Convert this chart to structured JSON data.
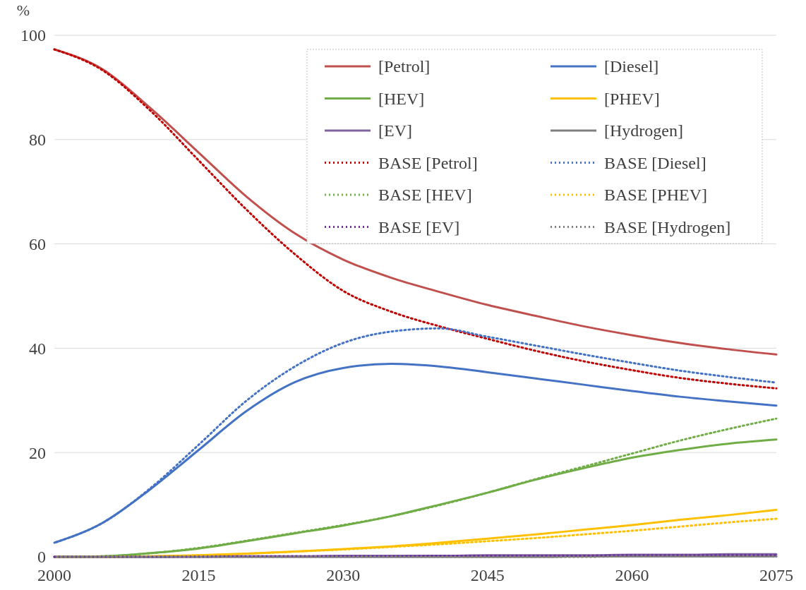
{
  "chart_data": {
    "type": "line",
    "ylabel": "%",
    "x": [
      2000,
      2005,
      2010,
      2015,
      2020,
      2025,
      2030,
      2035,
      2040,
      2045,
      2050,
      2055,
      2060,
      2065,
      2070,
      2075
    ],
    "xlim": [
      2000,
      2075
    ],
    "xticks": [
      2000,
      2015,
      2030,
      2045,
      2060,
      2075
    ],
    "ylim": [
      0,
      100
    ],
    "yticks": [
      0,
      20,
      40,
      60,
      80,
      100
    ],
    "grid": "y",
    "legend": "top right",
    "series": [
      {
        "name": "[Petrol]",
        "color": "#c0504d",
        "line_style": "solid",
        "values": [
          97.3,
          93.5,
          86,
          77.5,
          69,
          62,
          57,
          53.5,
          50.8,
          48.3,
          46.2,
          44.2,
          42.5,
          41,
          39.8,
          38.8
        ]
      },
      {
        "name": "[Diesel]",
        "color": "#4472c4",
        "line_style": "solid",
        "values": [
          2.7,
          6.5,
          13,
          20.5,
          28,
          33.5,
          36.2,
          37,
          36.5,
          35.4,
          34.2,
          33,
          31.8,
          30.7,
          29.8,
          29
        ]
      },
      {
        "name": "[HEV]",
        "color": "#70ad47",
        "line_style": "solid",
        "values": [
          0,
          0.1,
          0.7,
          1.6,
          3,
          4.5,
          6,
          7.8,
          10,
          12.3,
          14.8,
          17,
          19,
          20.5,
          21.7,
          22.5
        ]
      },
      {
        "name": "[PHEV]",
        "color": "#ffc000",
        "line_style": "solid",
        "values": [
          0,
          0,
          0.1,
          0.3,
          0.6,
          1,
          1.5,
          2,
          2.7,
          3.5,
          4.3,
          5.2,
          6.1,
          7.1,
          8,
          9
        ]
      },
      {
        "name": "[EV]",
        "color": "#8064a2",
        "line_style": "solid",
        "values": [
          0,
          0,
          0,
          0.1,
          0.1,
          0.1,
          0.2,
          0.2,
          0.2,
          0.3,
          0.3,
          0.3,
          0.4,
          0.4,
          0.5,
          0.5
        ]
      },
      {
        "name": "[Hydrogen]",
        "color": "#7f7f7f",
        "line_style": "solid",
        "values": [
          0,
          0,
          0,
          0,
          0,
          0,
          0,
          0,
          0,
          0,
          0,
          0.1,
          0.1,
          0.1,
          0.1,
          0.1
        ]
      },
      {
        "name": "BASE [Petrol]",
        "color": "#c00000",
        "line_style": "dotted",
        "values": [
          97.3,
          93.3,
          85.5,
          76,
          66.5,
          58,
          51,
          47,
          44.2,
          41.8,
          39.5,
          37.5,
          35.8,
          34.3,
          33.2,
          32.3
        ]
      },
      {
        "name": "BASE [Diesel]",
        "color": "#4472c4",
        "line_style": "dotted",
        "values": [
          2.7,
          6.5,
          13.2,
          21.5,
          30,
          36.5,
          41,
          43.2,
          43.8,
          42.2,
          40.5,
          38.8,
          37.2,
          35.7,
          34.5,
          33.4
        ]
      },
      {
        "name": "BASE [HEV]",
        "color": "#70ad47",
        "line_style": "dotted",
        "values": [
          0,
          0.1,
          0.7,
          1.7,
          3.1,
          4.6,
          6.1,
          7.8,
          9.9,
          12.3,
          14.9,
          17.3,
          19.8,
          22.3,
          24.5,
          26.5
        ]
      },
      {
        "name": "BASE [PHEV]",
        "color": "#ffc000",
        "line_style": "dotted",
        "values": [
          0,
          0,
          0.1,
          0.3,
          0.6,
          1,
          1.4,
          1.9,
          2.4,
          3,
          3.6,
          4.3,
          5,
          5.8,
          6.6,
          7.3
        ]
      },
      {
        "name": "BASE [EV]",
        "color": "#7030a0",
        "line_style": "dotted",
        "values": [
          0,
          0,
          0,
          0,
          0.1,
          0.1,
          0.1,
          0.1,
          0.2,
          0.2,
          0.2,
          0.2,
          0.3,
          0.3,
          0.3,
          0.3
        ]
      },
      {
        "name": "BASE [Hydrogen]",
        "color": "#7f7f7f",
        "line_style": "dotted",
        "values": [
          0,
          0,
          0,
          0,
          0,
          0,
          0,
          0,
          0,
          0,
          0,
          0,
          0.1,
          0.1,
          0.1,
          0.1
        ]
      }
    ]
  }
}
